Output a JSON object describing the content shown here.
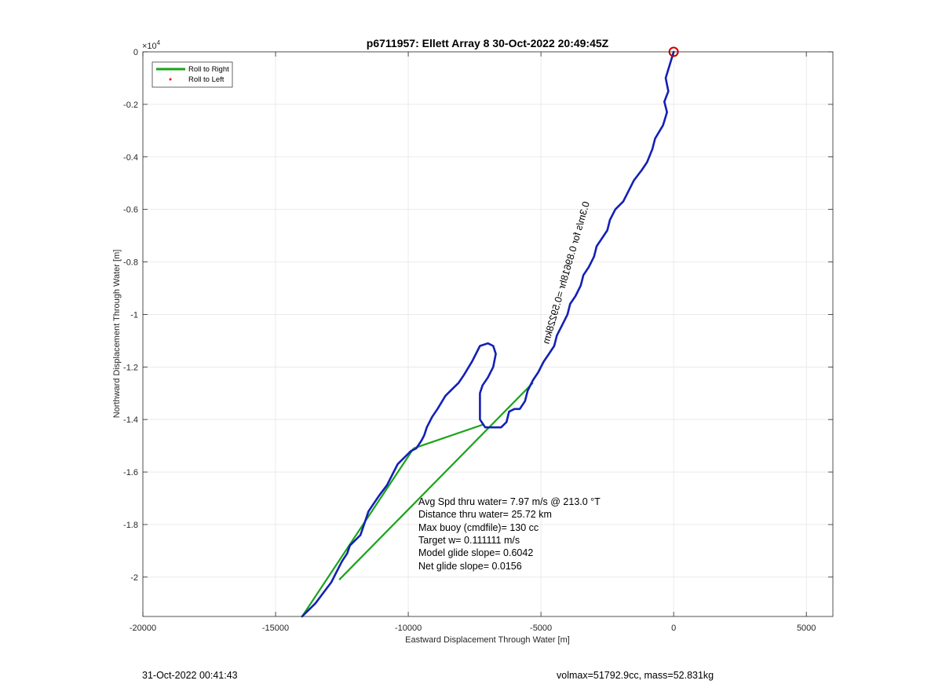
{
  "chart_data": {
    "type": "line",
    "title": "p6711957: Ellett Array 8 30-Oct-2022 20:49:45Z",
    "xlabel": "Eastward Displacement Through Water [m]",
    "ylabel": "Northward Displacement Through Water [m]",
    "xlim": [
      -20000,
      6000
    ],
    "ylim": [
      -21500,
      0
    ],
    "y_exponent_label": "×10",
    "y_exponent_power": "4",
    "xticks": [
      -20000,
      -15000,
      -10000,
      -5000,
      0,
      5000
    ],
    "xtick_labels": [
      "-20000",
      "-15000",
      "-10000",
      "-5000",
      "0",
      "5000"
    ],
    "yticks": [
      0,
      -2000,
      -4000,
      -6000,
      -8000,
      -10000,
      -12000,
      -14000,
      -16000,
      -18000,
      -20000
    ],
    "ytick_labels": [
      "0",
      "-0.2",
      "-0.4",
      "-0.6",
      "-0.8",
      "-1",
      "-1.2",
      "-1.4",
      "-1.6",
      "-1.8",
      "-2"
    ],
    "grid": true,
    "legend_position": "top-left",
    "series": [
      {
        "name": "Roll to Right",
        "color": "#1aa31a",
        "x": [
          -9800,
          -7200,
          -5300,
          -12600,
          -9800,
          -14000
        ],
        "y": [
          -15100,
          -14200,
          -12600,
          -20100,
          -15100,
          -21500
        ]
      },
      {
        "name": "Roll to Left",
        "color": "#ff0000",
        "marker": "dot",
        "x": [],
        "y": []
      }
    ],
    "track": {
      "color": "#1420b4",
      "x": [
        0,
        -300,
        -200,
        -350,
        -250,
        -400,
        -700,
        -800,
        -1000,
        -1200,
        -1500,
        -1700,
        -1900,
        -2200,
        -2400,
        -2500,
        -2700,
        -2900,
        -3000,
        -3200,
        -3400,
        -3500,
        -3700,
        -3900,
        -4000,
        -4200,
        -4400,
        -4500,
        -4700,
        -4900,
        -5100,
        -5300,
        -5500,
        -5600,
        -5800,
        -6000,
        -6200,
        -6300,
        -6500,
        -6800,
        -7100,
        -7300,
        -7300,
        -7300,
        -7200,
        -7000,
        -6800,
        -6700,
        -6800,
        -7000,
        -7300,
        -7600,
        -7900,
        -8100,
        -8300,
        -8600,
        -8900,
        -9100,
        -9300,
        -9400,
        -9500,
        -9700,
        -9900,
        -10100,
        -10400,
        -10600,
        -10800,
        -11100,
        -11300,
        -11500,
        -11600,
        -11700,
        -11800,
        -12000,
        -12200,
        -12300,
        -12500,
        -12700,
        -12900,
        -13200,
        -13500,
        -13800,
        -14000
      ],
      "y": [
        0,
        -1000,
        -1500,
        -1900,
        -2300,
        -2800,
        -3300,
        -3700,
        -4200,
        -4500,
        -4900,
        -5300,
        -5700,
        -6000,
        -6400,
        -6800,
        -7100,
        -7400,
        -7800,
        -8200,
        -8500,
        -8900,
        -9300,
        -9600,
        -10000,
        -10400,
        -10800,
        -11200,
        -11500,
        -11800,
        -12200,
        -12500,
        -12900,
        -13300,
        -13600,
        -13600,
        -13700,
        -14100,
        -14300,
        -14300,
        -14300,
        -14000,
        -13500,
        -13000,
        -12700,
        -12400,
        -12000,
        -11500,
        -11200,
        -11100,
        -11200,
        -11800,
        -12300,
        -12600,
        -12800,
        -13100,
        -13600,
        -13900,
        -14300,
        -14600,
        -14800,
        -15100,
        -15200,
        -15400,
        -15700,
        -16100,
        -16500,
        -16900,
        -17200,
        -17500,
        -17800,
        -18100,
        -18400,
        -18600,
        -18800,
        -19100,
        -19400,
        -19800,
        -20200,
        -20600,
        -21000,
        -21300,
        -21500
      ]
    },
    "start_marker": {
      "x": 0,
      "y": 0,
      "color": "#cc0000"
    },
    "start_label": "0.3m/s for 0.89618hr =0.59228km",
    "annotations": [
      "Avg Spd thru water=  7.97 m/s @ 213.0 °T",
      "Distance thru water= 25.72 km",
      "Max buoy (cmdfile)= 130 cc",
      "Target w= 0.111111 m/s",
      "Model glide slope= 0.6042",
      "Net glide slope= 0.0156"
    ]
  },
  "footer": {
    "timestamp": "31-Oct-2022 00:41:43",
    "info": "volmax=51792.9cc, mass=52.831kg"
  }
}
